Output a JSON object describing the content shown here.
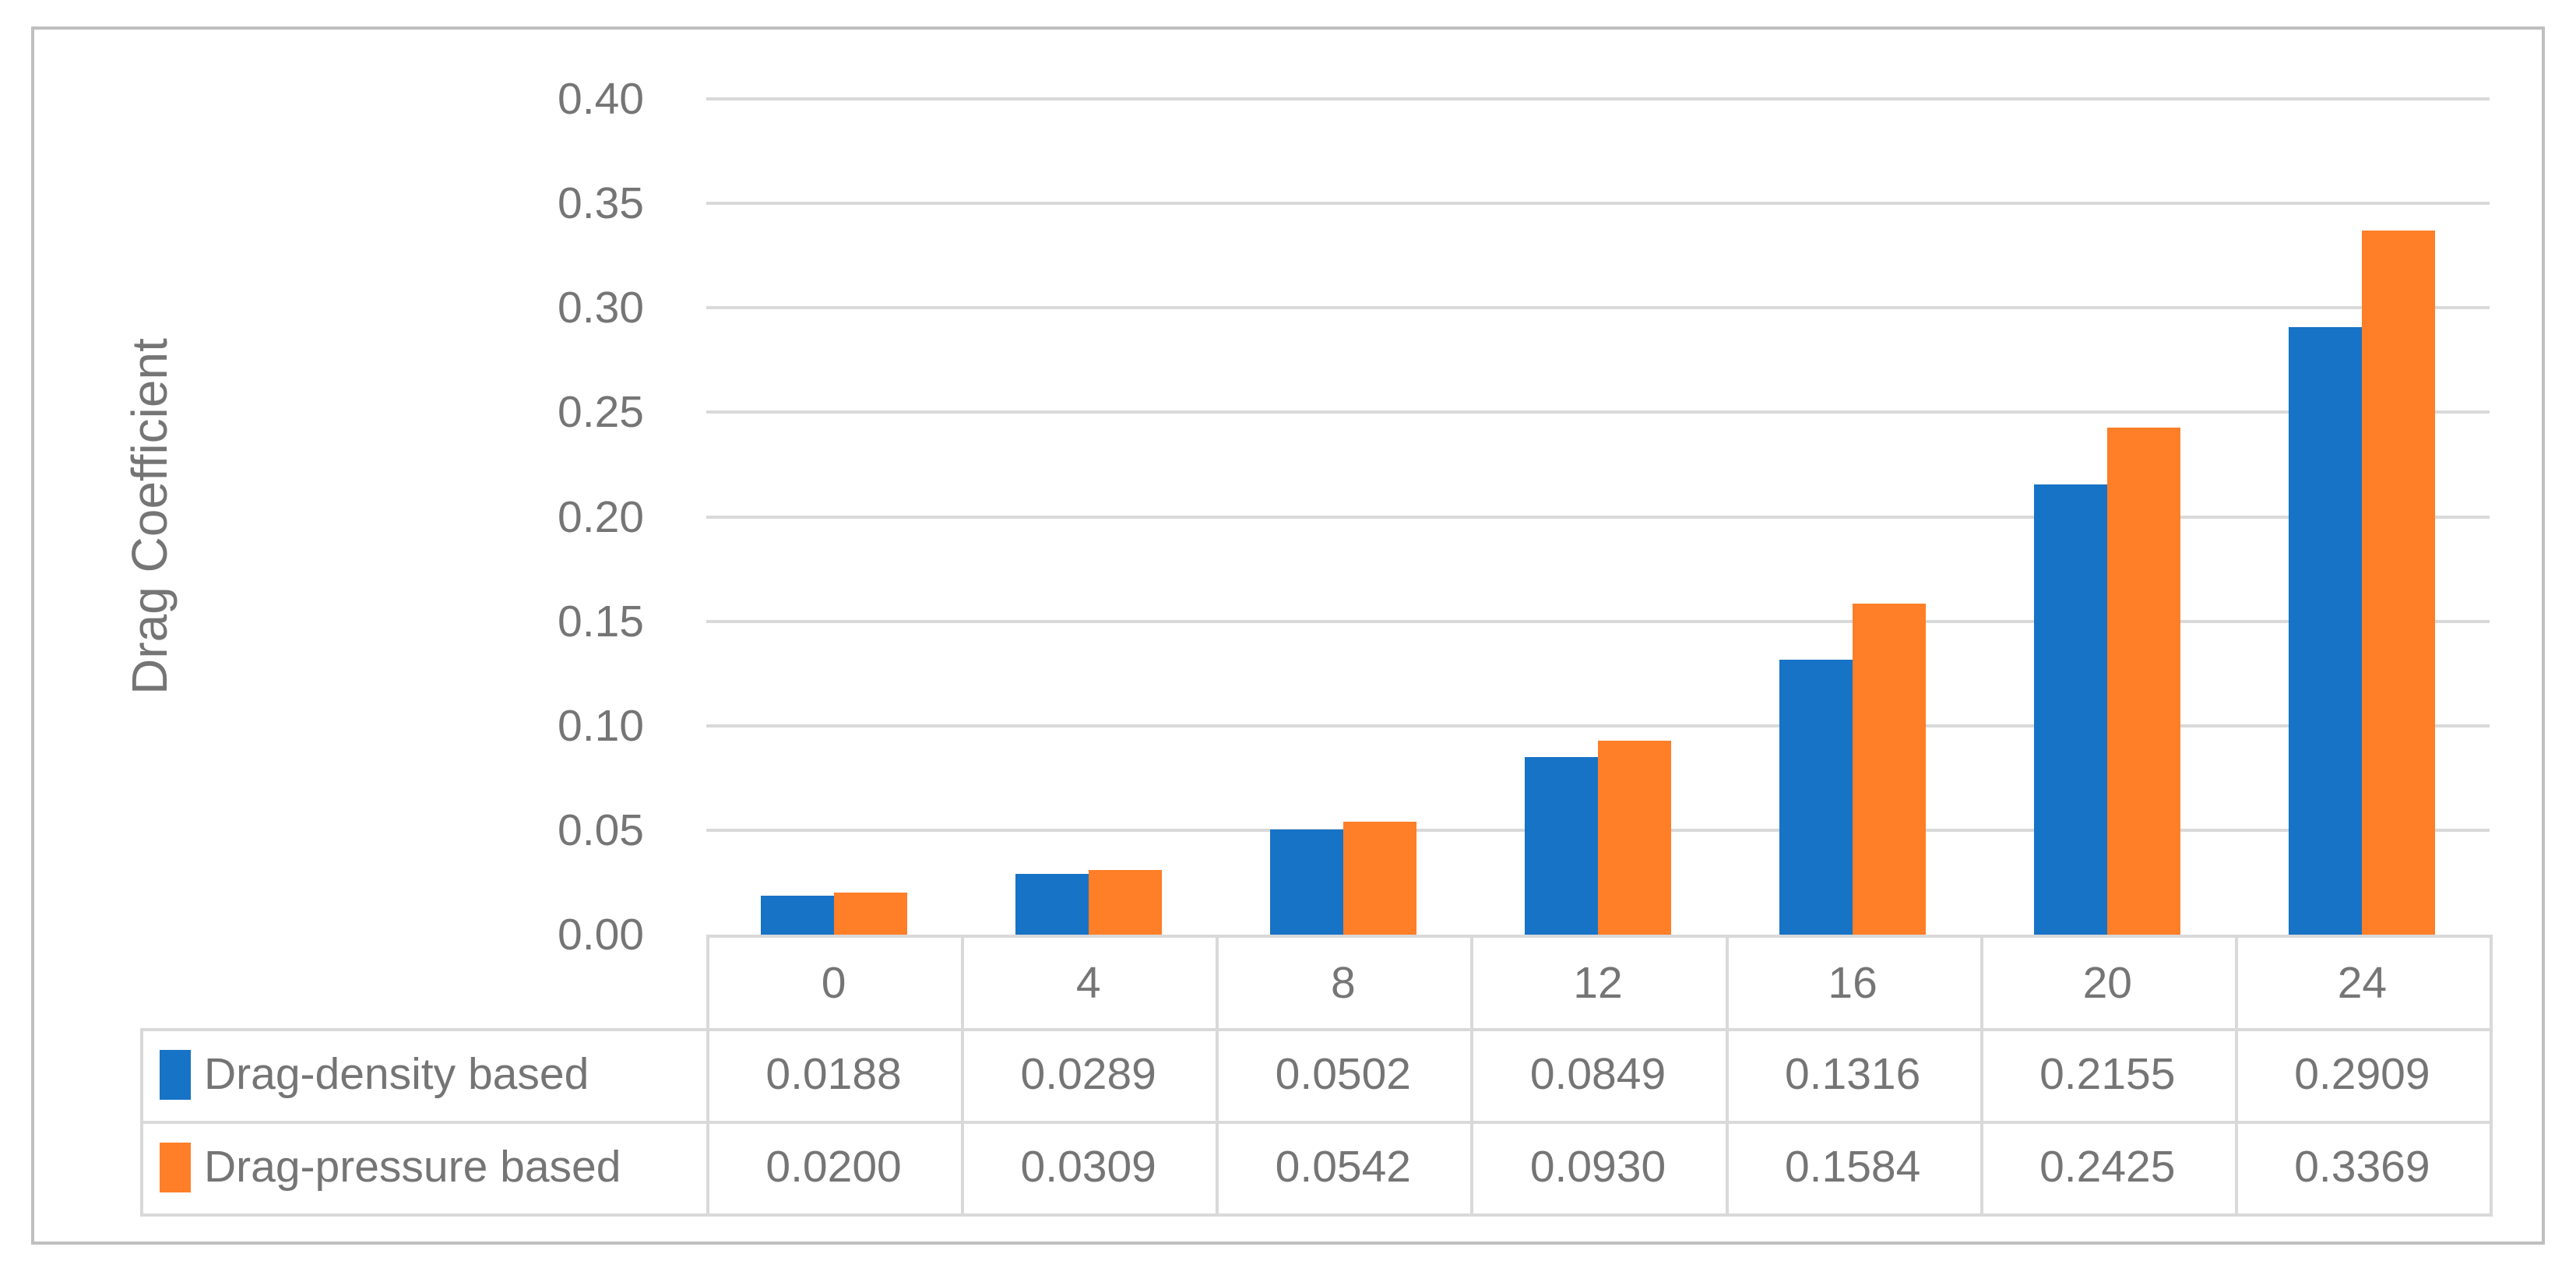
{
  "figure": {
    "background": "#FFFFFF",
    "frame_color": "#BFBFBF",
    "grid_color": "#D9D9D9",
    "text_color": "#757575"
  },
  "chart_data": {
    "type": "bar",
    "title": "",
    "xlabel": "",
    "ylabel": "Drag Coefficient",
    "categories": [
      "0",
      "4",
      "8",
      "12",
      "16",
      "20",
      "24"
    ],
    "series": [
      {
        "name": "Drag-density based",
        "color": "#1773C6",
        "values": [
          0.0188,
          0.0289,
          0.0502,
          0.0849,
          0.1316,
          0.2155,
          0.2909
        ],
        "labels": [
          "0.0188",
          "0.0289",
          "0.0502",
          "0.0849",
          "0.1316",
          "0.2155",
          "0.2909"
        ]
      },
      {
        "name": "Drag-pressure based",
        "color": "#FF7E27",
        "values": [
          0.02,
          0.0309,
          0.0542,
          0.093,
          0.1584,
          0.2425,
          0.3369
        ],
        "labels": [
          "0.0200",
          "0.0309",
          "0.0542",
          "0.0930",
          "0.1584",
          "0.2425",
          "0.3369"
        ]
      }
    ],
    "ylim": [
      0,
      0.4
    ],
    "ytick_step": 0.05,
    "ytick_labels": [
      "0.00",
      "0.05",
      "0.10",
      "0.15",
      "0.20",
      "0.25",
      "0.30",
      "0.35",
      "0.40"
    ],
    "grid": "horizontal",
    "legend_position": "data-table-rows-left",
    "data_table_shown": true
  }
}
